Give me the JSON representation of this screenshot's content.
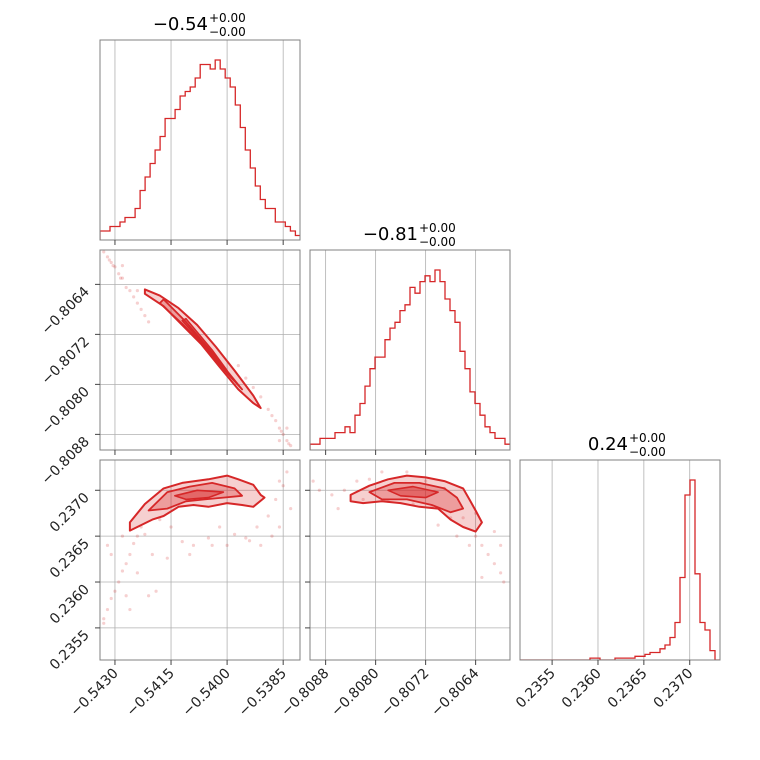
{
  "chart_data": {
    "type": "corner",
    "color": "#d62728",
    "parameters": [
      {
        "title_value": "−0.54",
        "title_plus": "+0.00",
        "title_minus": "−0.00",
        "range": [
          -0.5434,
          -0.53805
        ],
        "ticks": [
          -0.543,
          -0.5415,
          -0.54,
          -0.5385
        ],
        "tick_labels": [
          "−0.5430",
          "−0.5415",
          "−0.5400",
          "−0.5385"
        ],
        "histogram": {
          "edges_start": -0.5434,
          "bin_width": 0.000134,
          "counts": [
            2,
            2,
            3,
            3,
            4,
            5,
            5,
            7,
            11,
            14,
            17,
            20,
            23,
            27,
            27,
            29,
            32,
            33,
            34,
            36,
            39,
            39,
            38,
            40,
            38,
            36,
            34,
            30,
            25,
            20,
            16,
            12,
            9,
            7,
            7,
            4,
            4,
            3,
            2,
            1
          ]
        }
      },
      {
        "title_value": "−0.81",
        "title_plus": "+0.00",
        "title_minus": "−0.00",
        "range": [
          -0.80905,
          -0.80585
        ],
        "ticks": [
          -0.8088,
          -0.808,
          -0.8072,
          -0.8064
        ],
        "tick_labels": [
          "−0.8088",
          "−0.8080",
          "−0.8072",
          "−0.8064"
        ],
        "histogram": {
          "edges_start": -0.80905,
          "bin_width": 8e-05,
          "counts": [
            1,
            1,
            2,
            2,
            2,
            3,
            3,
            4,
            3,
            6,
            8,
            11,
            14,
            16,
            16,
            19,
            21,
            22,
            24,
            25,
            28,
            27,
            29,
            30,
            29,
            31,
            29,
            26,
            24,
            22,
            17,
            14,
            10,
            8,
            6,
            4,
            3,
            2,
            2,
            1
          ]
        }
      },
      {
        "title_value": "0.24",
        "title_plus": "+0.00",
        "title_minus": "−0.00",
        "range": [
          0.23515,
          0.23733
        ],
        "ticks": [
          0.2355,
          0.236,
          0.2365,
          0.237
        ],
        "tick_labels": [
          "0.2355",
          "0.2360",
          "0.2365",
          "0.2370"
        ],
        "histogram": {
          "edges_start": 0.23515,
          "bin_width": 5.45e-05,
          "counts": [
            0,
            0,
            0,
            0,
            0,
            0,
            0,
            0,
            0,
            0,
            0,
            0,
            0,
            0,
            1,
            1,
            0,
            0,
            0,
            1,
            1,
            1,
            1,
            2,
            2,
            3,
            4,
            4,
            6,
            8,
            12,
            20,
            44,
            88,
            96,
            46,
            20,
            16,
            5,
            0
          ]
        }
      }
    ],
    "scatter_pairs": [
      {
        "row": 1,
        "col": 0,
        "points": [
          [
            -0.5433,
            -0.80588
          ],
          [
            -0.5432,
            -0.80596
          ],
          [
            -0.54315,
            -0.80601
          ],
          [
            -0.5431,
            -0.80605
          ],
          [
            -0.54305,
            -0.8061
          ],
          [
            -0.543,
            -0.80612
          ],
          [
            -0.5429,
            -0.80623
          ],
          [
            -0.54285,
            -0.8063
          ],
          [
            -0.5428,
            -0.8063
          ],
          [
            -0.5427,
            -0.80645
          ],
          [
            -0.5426,
            -0.8065
          ],
          [
            -0.5425,
            -0.8066
          ],
          [
            -0.5424,
            -0.8067
          ],
          [
            -0.5423,
            -0.8068
          ],
          [
            -0.5422,
            -0.8069
          ],
          [
            -0.5421,
            -0.807
          ],
          [
            -0.5397,
            -0.8077
          ],
          [
            -0.5395,
            -0.8079
          ],
          [
            -0.5393,
            -0.80805
          ],
          [
            -0.5391,
            -0.8082
          ],
          [
            -0.5389,
            -0.8084
          ],
          [
            -0.5388,
            -0.8085
          ],
          [
            -0.5387,
            -0.80858
          ],
          [
            -0.5386,
            -0.8087
          ],
          [
            -0.53855,
            -0.80875
          ],
          [
            -0.5385,
            -0.8088
          ],
          [
            -0.5384,
            -0.8089
          ],
          [
            -0.53835,
            -0.80895
          ],
          [
            -0.5383,
            -0.80898
          ],
          [
            -0.5384,
            -0.8087
          ],
          [
            -0.5386,
            -0.8089
          ],
          [
            -0.5428,
            -0.8061
          ],
          [
            -0.5424,
            -0.8065
          ]
        ],
        "contour": [
          [
            -0.5422,
            -0.80655
          ],
          [
            -0.5417,
            -0.80675
          ],
          [
            -0.5412,
            -0.80705
          ],
          [
            -0.5407,
            -0.80735
          ],
          [
            -0.5402,
            -0.80772
          ],
          [
            -0.5397,
            -0.80808
          ],
          [
            -0.5393,
            -0.8083
          ],
          [
            -0.5391,
            -0.80838
          ],
          [
            -0.5393,
            -0.80818
          ],
          [
            -0.5398,
            -0.80778
          ],
          [
            -0.5403,
            -0.8074
          ],
          [
            -0.5408,
            -0.80705
          ],
          [
            -0.5413,
            -0.80678
          ],
          [
            -0.5418,
            -0.80658
          ],
          [
            -0.5422,
            -0.80648
          ]
        ],
        "contour_mid": [
          [
            -0.5418,
            -0.8067
          ],
          [
            -0.5412,
            -0.80703
          ],
          [
            -0.5406,
            -0.8074
          ],
          [
            -0.54,
            -0.80782
          ],
          [
            -0.5396,
            -0.80808
          ],
          [
            -0.5399,
            -0.80786
          ],
          [
            -0.5405,
            -0.80742
          ],
          [
            -0.5411,
            -0.807
          ],
          [
            -0.5417,
            -0.80664
          ]
        ],
        "contour_core": [
          [
            -0.5412,
            -0.80698
          ],
          [
            -0.5405,
            -0.80744
          ],
          [
            -0.54,
            -0.80778
          ],
          [
            -0.5404,
            -0.80745
          ],
          [
            -0.5411,
            -0.80695
          ]
        ]
      },
      {
        "row": 2,
        "col": 0,
        "points": [
          [
            -0.5433,
            0.2356
          ],
          [
            -0.5432,
            0.2357
          ],
          [
            -0.5431,
            0.23582
          ],
          [
            -0.543,
            0.2359
          ],
          [
            -0.5429,
            0.236
          ],
          [
            -0.5428,
            0.23612
          ],
          [
            -0.5427,
            0.2362
          ],
          [
            -0.5426,
            0.2363
          ],
          [
            -0.5425,
            0.23642
          ],
          [
            -0.5424,
            0.2365
          ],
          [
            -0.5423,
            0.2366
          ],
          [
            -0.5422,
            0.23652
          ],
          [
            -0.5433,
            0.23555
          ],
          [
            -0.5431,
            0.2363
          ],
          [
            -0.5428,
            0.2365
          ],
          [
            -0.5426,
            0.2357
          ],
          [
            -0.5424,
            0.2361
          ],
          [
            -0.542,
            0.2363
          ],
          [
            -0.5418,
            0.23668
          ],
          [
            -0.5415,
            0.2366
          ],
          [
            -0.5412,
            0.23644
          ],
          [
            -0.5409,
            0.2364
          ],
          [
            -0.5405,
            0.23648
          ],
          [
            -0.5402,
            0.2366
          ],
          [
            -0.5398,
            0.23652
          ],
          [
            -0.5395,
            0.23648
          ],
          [
            -0.5392,
            0.2366
          ],
          [
            -0.5389,
            0.23672
          ],
          [
            -0.5387,
            0.2369
          ],
          [
            -0.5386,
            0.2371
          ],
          [
            -0.5385,
            0.23705
          ],
          [
            -0.5384,
            0.2372
          ],
          [
            -0.5383,
            0.2368
          ],
          [
            -0.5386,
            0.2366
          ],
          [
            -0.5388,
            0.2365
          ],
          [
            -0.5391,
            0.2364
          ],
          [
            -0.5394,
            0.23645
          ],
          [
            -0.5416,
            0.23626
          ],
          [
            -0.541,
            0.2363
          ],
          [
            -0.5404,
            0.2364
          ],
          [
            -0.54,
            0.2364
          ],
          [
            -0.5421,
            0.23585
          ],
          [
            -0.5419,
            0.2359
          ],
          [
            -0.5427,
            0.23585
          ],
          [
            -0.5432,
            0.2364
          ]
        ],
        "contour": [
          [
            -0.5426,
            0.23665
          ],
          [
            -0.5422,
            0.23685
          ],
          [
            -0.5417,
            0.23702
          ],
          [
            -0.5412,
            0.23708
          ],
          [
            -0.5405,
            0.23712
          ],
          [
            -0.54,
            0.23716
          ],
          [
            -0.5397,
            0.23712
          ],
          [
            -0.5393,
            0.23706
          ],
          [
            -0.5391,
            0.23695
          ],
          [
            -0.539,
            0.23692
          ],
          [
            -0.5393,
            0.23682
          ],
          [
            -0.5396,
            0.23684
          ],
          [
            -0.54,
            0.23686
          ],
          [
            -0.5405,
            0.23682
          ],
          [
            -0.5409,
            0.23684
          ],
          [
            -0.5413,
            0.23682
          ],
          [
            -0.5417,
            0.23672
          ],
          [
            -0.542,
            0.23668
          ],
          [
            -0.5423,
            0.23662
          ],
          [
            -0.5426,
            0.23656
          ]
        ],
        "contour_mid": [
          [
            -0.5421,
            0.23678
          ],
          [
            -0.5416,
            0.23698
          ],
          [
            -0.541,
            0.23704
          ],
          [
            -0.5404,
            0.23708
          ],
          [
            -0.5398,
            0.23702
          ],
          [
            -0.5396,
            0.23694
          ],
          [
            -0.5401,
            0.23692
          ],
          [
            -0.5406,
            0.2369
          ],
          [
            -0.5411,
            0.23688
          ],
          [
            -0.5416,
            0.2368
          ]
        ],
        "contour_core": [
          [
            -0.5414,
            0.23694
          ],
          [
            -0.5408,
            0.237
          ],
          [
            -0.5401,
            0.23698
          ],
          [
            -0.5405,
            0.23692
          ],
          [
            -0.5411,
            0.2369
          ]
        ]
      },
      {
        "row": 2,
        "col": 1,
        "points": [
          [
            -0.809,
            0.2371
          ],
          [
            -0.8089,
            0.237
          ],
          [
            -0.8087,
            0.23695
          ],
          [
            -0.8085,
            0.237
          ],
          [
            -0.8083,
            0.2371
          ],
          [
            -0.8081,
            0.23712
          ],
          [
            -0.8079,
            0.2372
          ],
          [
            -0.8075,
            0.2372
          ],
          [
            -0.8072,
            0.2371
          ],
          [
            -0.8069,
            0.23702
          ],
          [
            -0.8066,
            0.2367
          ],
          [
            -0.8064,
            0.2365
          ],
          [
            -0.8063,
            0.2364
          ],
          [
            -0.8062,
            0.2363
          ],
          [
            -0.8061,
            0.2362
          ],
          [
            -0.806,
            0.2361
          ],
          [
            -0.80595,
            0.236
          ],
          [
            -0.8063,
            0.23605
          ],
          [
            -0.8065,
            0.2364
          ],
          [
            -0.8067,
            0.2365
          ],
          [
            -0.807,
            0.23662
          ],
          [
            -0.8068,
            0.2367
          ],
          [
            -0.8082,
            0.2369
          ],
          [
            -0.8078,
            0.23688
          ],
          [
            -0.8074,
            0.23685
          ],
          [
            -0.8071,
            0.23682
          ],
          [
            -0.8064,
            0.23675
          ],
          [
            -0.8086,
            0.2368
          ],
          [
            -0.8061,
            0.23655
          ],
          [
            -0.806,
            0.2364
          ]
        ],
        "contour": [
          [
            -0.8084,
            0.23695
          ],
          [
            -0.8081,
            0.23705
          ],
          [
            -0.8078,
            0.23712
          ],
          [
            -0.8075,
            0.23716
          ],
          [
            -0.8072,
            0.23714
          ],
          [
            -0.8069,
            0.2371
          ],
          [
            -0.8066,
            0.23702
          ],
          [
            -0.8065,
            0.2369
          ],
          [
            -0.8064,
            0.23678
          ],
          [
            -0.8063,
            0.23665
          ],
          [
            -0.8064,
            0.23655
          ],
          [
            -0.8066,
            0.2366
          ],
          [
            -0.8068,
            0.23668
          ],
          [
            -0.807,
            0.2368
          ],
          [
            -0.8073,
            0.23682
          ],
          [
            -0.8076,
            0.23686
          ],
          [
            -0.8079,
            0.23688
          ],
          [
            -0.8082,
            0.23686
          ],
          [
            -0.8084,
            0.23688
          ]
        ],
        "contour_mid": [
          [
            -0.8081,
            0.23698
          ],
          [
            -0.8077,
            0.23708
          ],
          [
            -0.8073,
            0.23708
          ],
          [
            -0.8069,
            0.23702
          ],
          [
            -0.8067,
            0.23692
          ],
          [
            -0.8066,
            0.2368
          ],
          [
            -0.8068,
            0.23676
          ],
          [
            -0.8071,
            0.23684
          ],
          [
            -0.8075,
            0.2369
          ],
          [
            -0.8079,
            0.2369
          ]
        ],
        "contour_core": [
          [
            -0.8078,
            0.237
          ],
          [
            -0.8074,
            0.23704
          ],
          [
            -0.807,
            0.23698
          ],
          [
            -0.8072,
            0.23692
          ],
          [
            -0.8076,
            0.23694
          ]
        ]
      }
    ],
    "grid": true
  }
}
